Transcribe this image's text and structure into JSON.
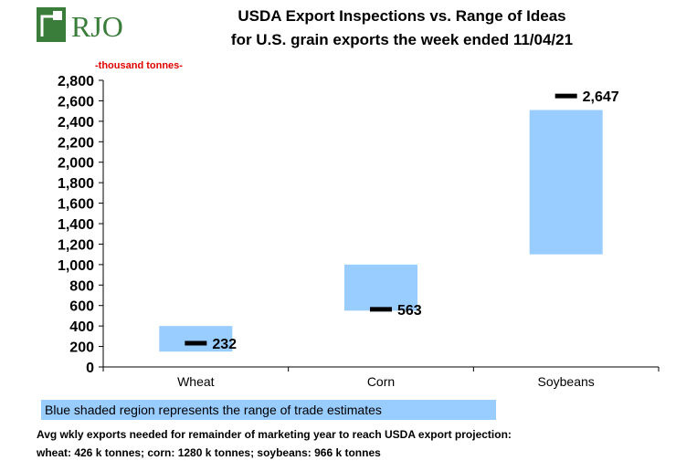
{
  "logo": {
    "text": "RJO",
    "color": "#3a7d3a"
  },
  "header": {
    "title_line1": "USDA Export Inspections vs. Range of Ideas",
    "title_line2": "for U.S. grain exports the week ended 11/04/21",
    "unit_label": "-thousand  tonnes-"
  },
  "chart_data": {
    "type": "range-bar",
    "title": "USDA Export Inspections vs. Range of Ideas for U.S. grain exports the week ended 11/04/21",
    "ylabel": "thousand tonnes",
    "ylim": [
      0,
      2800
    ],
    "ytick_step": 200,
    "categories": [
      "Wheat",
      "Corn",
      "Soybeans"
    ],
    "ranges": [
      {
        "low": 150,
        "high": 400
      },
      {
        "low": 550,
        "high": 1000
      },
      {
        "low": 1100,
        "high": 2510
      }
    ],
    "actual": [
      232,
      563,
      2647
    ],
    "actual_labels": [
      "232",
      "563",
      "2,647"
    ],
    "range_color": "#99ccff",
    "marker_color": "#000000"
  },
  "legend": {
    "text": "Blue shaded region represents the range of trade estimates"
  },
  "footnote": {
    "line1": "Avg wkly exports needed for remainder of marketing year to reach USDA export projection:",
    "line2": "wheat: 426 k tonnes; corn: 1280 k tonnes; soybeans: 966 k tonnes"
  }
}
